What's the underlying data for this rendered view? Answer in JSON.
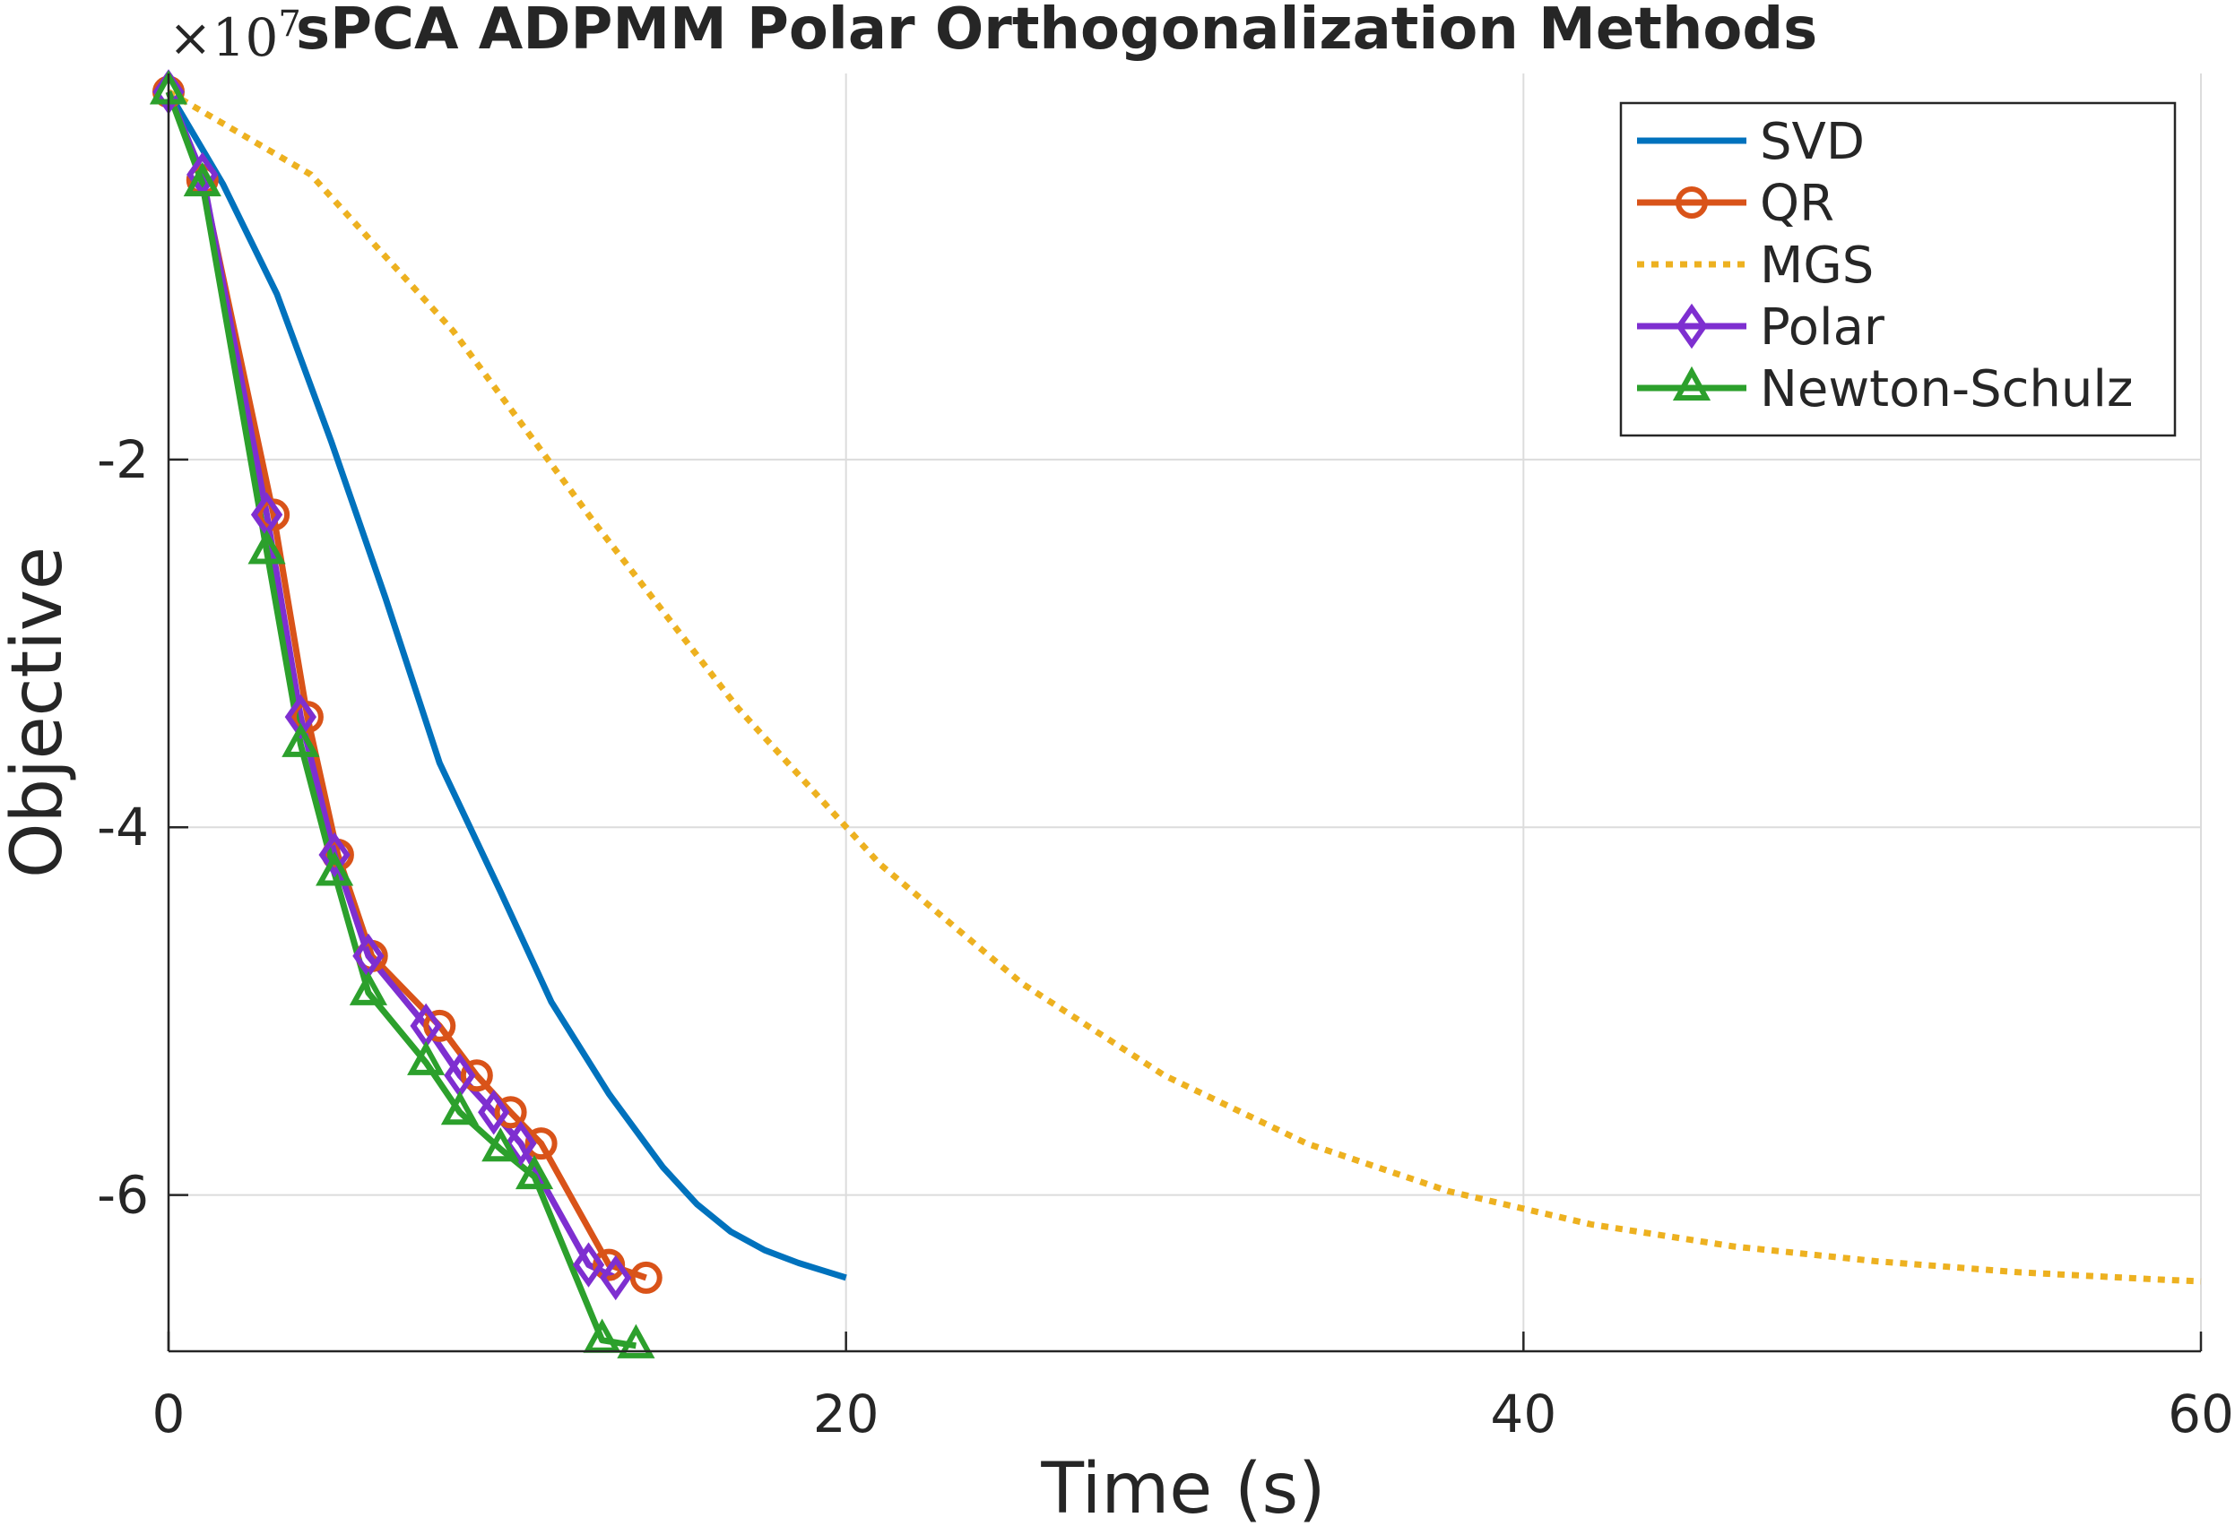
{
  "chart_data": {
    "type": "line",
    "title": "sPCA ADPMM Polar Orthogonalization Methods",
    "xlabel": "Time (s)",
    "ylabel": "Objective",
    "y_multiplier": "×10",
    "y_multiplier_exponent": "7",
    "xlim": [
      0,
      60
    ],
    "ylim": [
      -6.85,
      0.1
    ],
    "xticks": [
      0,
      20,
      40,
      60
    ],
    "xtick_labels": [
      "0",
      "20",
      "40",
      "60"
    ],
    "yticks": [
      -2,
      -4,
      -6
    ],
    "ytick_labels": [
      "-2",
      "-4",
      "-6"
    ],
    "grid": true,
    "legend_position": "top-right",
    "series": [
      {
        "name": "SVD",
        "color": "#0072BD",
        "line": "solid",
        "marker": "none",
        "x": [
          0,
          1.6,
          3.2,
          4.8,
          6.4,
          8.0,
          9.8,
          11.3,
          13.0,
          14.6,
          15.6,
          16.6,
          17.6,
          18.6,
          19.3,
          20.0
        ],
        "y": [
          0,
          -0.5,
          -1.1,
          -1.9,
          -2.75,
          -3.65,
          -4.35,
          -4.95,
          -5.45,
          -5.85,
          -6.05,
          -6.2,
          -6.3,
          -6.37,
          -6.41,
          -6.45
        ]
      },
      {
        "name": "QR",
        "color": "#D95319",
        "line": "solid",
        "marker": "circle",
        "x": [
          0,
          1.0,
          3.1,
          4.1,
          5.0,
          6.0,
          8.0,
          9.1,
          10.1,
          11.0,
          13.0,
          14.1
        ],
        "y": [
          0,
          -0.48,
          -2.3,
          -3.4,
          -4.15,
          -4.7,
          -5.08,
          -5.35,
          -5.55,
          -5.72,
          -6.38,
          -6.45
        ]
      },
      {
        "name": "MGS",
        "color": "#EDB120",
        "line": "dotted",
        "marker": "none",
        "x": [
          0,
          4.2,
          8.4,
          12.6,
          16.8,
          21.0,
          25.2,
          29.4,
          33.6,
          37.8,
          42.0,
          46.2,
          50.4,
          54.6,
          58.8,
          60.0
        ],
        "y": [
          0,
          -0.45,
          -1.3,
          -2.35,
          -3.35,
          -4.2,
          -4.85,
          -5.35,
          -5.72,
          -5.98,
          -6.16,
          -6.28,
          -6.36,
          -6.42,
          -6.46,
          -6.47
        ]
      },
      {
        "name": "Polar",
        "color": "#7E2FD0",
        "line": "solid",
        "marker": "diamond",
        "x": [
          0,
          1.0,
          2.9,
          3.9,
          4.9,
          5.9,
          7.6,
          8.6,
          9.6,
          10.4,
          12.4,
          13.2
        ],
        "y": [
          0,
          -0.45,
          -2.3,
          -3.4,
          -4.15,
          -4.7,
          -5.08,
          -5.35,
          -5.55,
          -5.72,
          -6.38,
          -6.45
        ]
      },
      {
        "name": "Newton-Schulz",
        "color": "#2CA02C",
        "line": "solid",
        "marker": "triangle",
        "x": [
          0,
          1.0,
          2.9,
          3.9,
          4.9,
          5.9,
          7.6,
          8.6,
          9.8,
          10.8,
          12.8,
          13.8
        ],
        "y": [
          0,
          -0.5,
          -2.5,
          -3.55,
          -4.25,
          -4.9,
          -5.28,
          -5.55,
          -5.75,
          -5.9,
          -6.79,
          -6.82
        ]
      }
    ]
  }
}
